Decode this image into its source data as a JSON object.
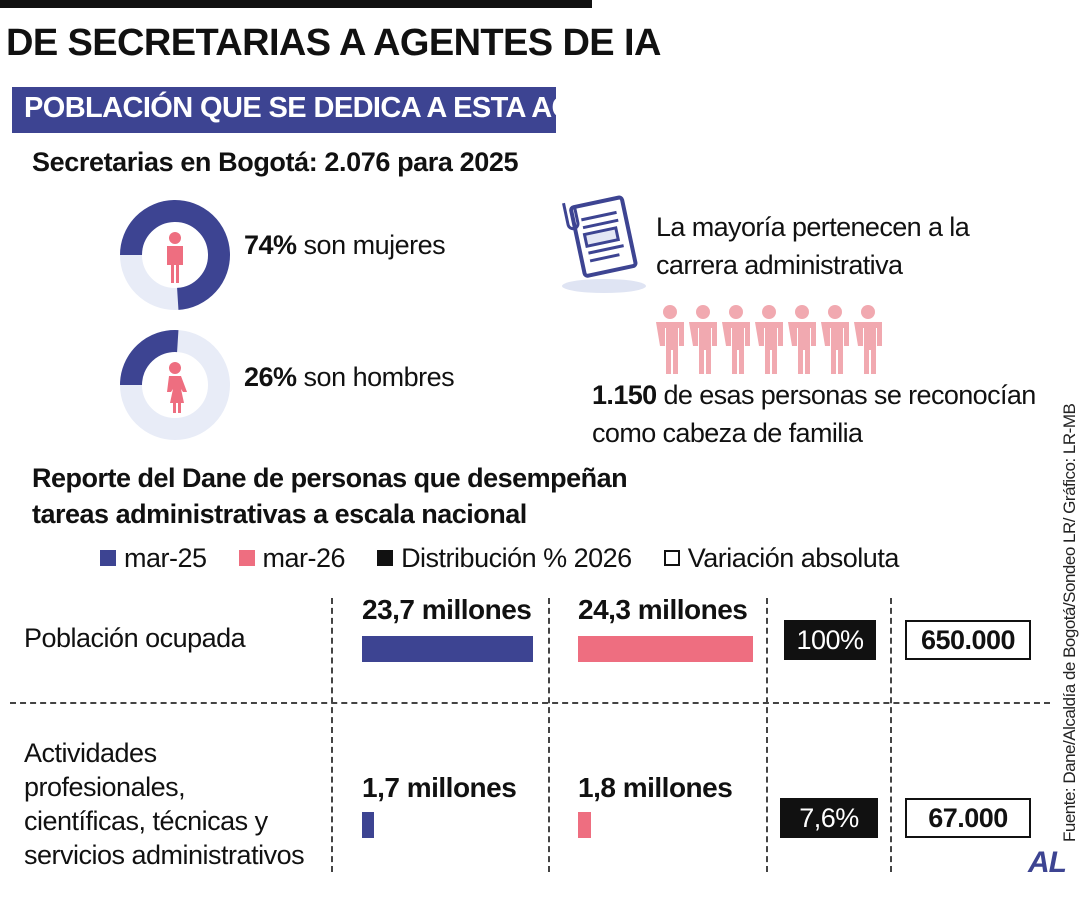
{
  "header": {
    "title": "DE SECRETARIAS A AGENTES DE IA",
    "band": "POBLACIÓN QUE SE DEDICA A ESTA ACTIVIDAD",
    "subtitle": "Secretarias en Bogotá: 2.076 para 2025"
  },
  "gender": {
    "women": {
      "pct_value": 74,
      "pct_label": "74%",
      "text": " son mujeres"
    },
    "men": {
      "pct_value": 26,
      "pct_label": "26%",
      "text": " son hombres"
    }
  },
  "facts": {
    "career_line1": "La mayoría pertenecen a la",
    "career_line2": "carrera administrativa",
    "family_number": "1.150",
    "family_text": " de esas personas se reconocían",
    "family_line2": "como cabeza de familia"
  },
  "icons": {
    "document": "document-icon",
    "woman": "woman-icon",
    "man": "man-icon",
    "people": "people-row-icon",
    "people_count": 7
  },
  "colors": {
    "blue": "#3d4492",
    "pink": "#ee6e80",
    "ring_track": "#e8ecf7",
    "people_pink": "#f1a9b0",
    "black": "#111111"
  },
  "section2": {
    "line1": "Reporte del Dane de personas que desempeñan",
    "line2": "tareas administrativas a escala nacional"
  },
  "legend": {
    "mar25": "mar-25",
    "mar26": "mar-26",
    "dist": "Distribución % 2026",
    "var": "Variación absoluta"
  },
  "chart_data": {
    "type": "bar",
    "categories": [
      "Población ocupada",
      "Actividades profesionales, científicas, técnicas y servicios administrativos"
    ],
    "series": [
      {
        "name": "mar-25",
        "values": [
          23.7,
          1.7
        ],
        "labels": [
          "23,7 millones",
          "1,7 millones"
        ]
      },
      {
        "name": "mar-26",
        "values": [
          24.3,
          1.8
        ],
        "labels": [
          "24,3 millones",
          "1,8 millones"
        ]
      }
    ],
    "distribution_2026": [
      "100%",
      "7,6%"
    ],
    "absolute_variation": [
      "650.000",
      "67.000"
    ],
    "unit": "millones"
  },
  "rows": {
    "row1_label": "Población ocupada",
    "row2_line1": "Actividades",
    "row2_line2": "profesionales,",
    "row2_line3": "científicas, técnicas y",
    "row2_line4": "servicios administrativos"
  },
  "footer": {
    "source": "Fuente: Dane/Alcaldía de Bogotá/Sondeo LR/ Gráfico: LR-MB",
    "logo": "AL"
  }
}
